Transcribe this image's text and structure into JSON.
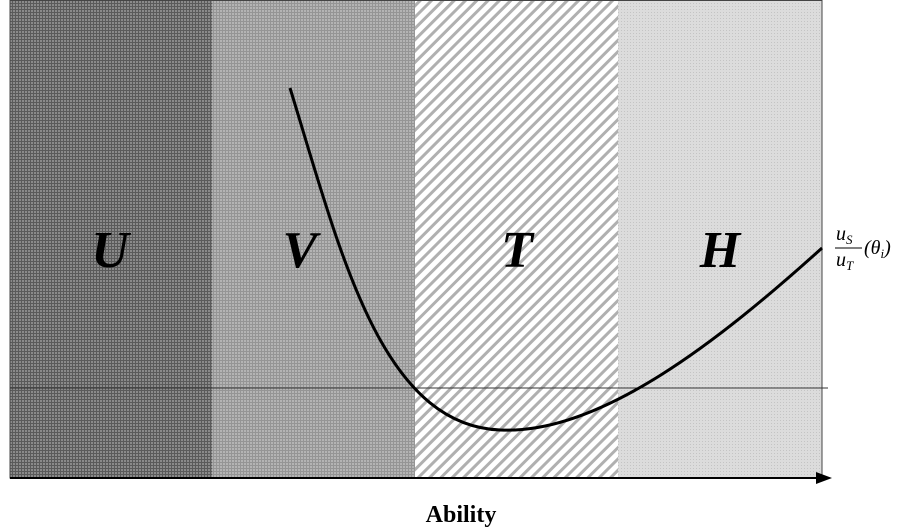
{
  "regions": [
    {
      "label": "U"
    },
    {
      "label": "V"
    },
    {
      "label": "T"
    },
    {
      "label": "H"
    }
  ],
  "x_axis_label": "Ability",
  "curve_label": {
    "numerator": "u",
    "numerator_sub": "S",
    "denominator": "u",
    "denominator_sub": "T",
    "argument_open": "(θ",
    "argument_sub": "i",
    "argument_close": ")"
  }
}
